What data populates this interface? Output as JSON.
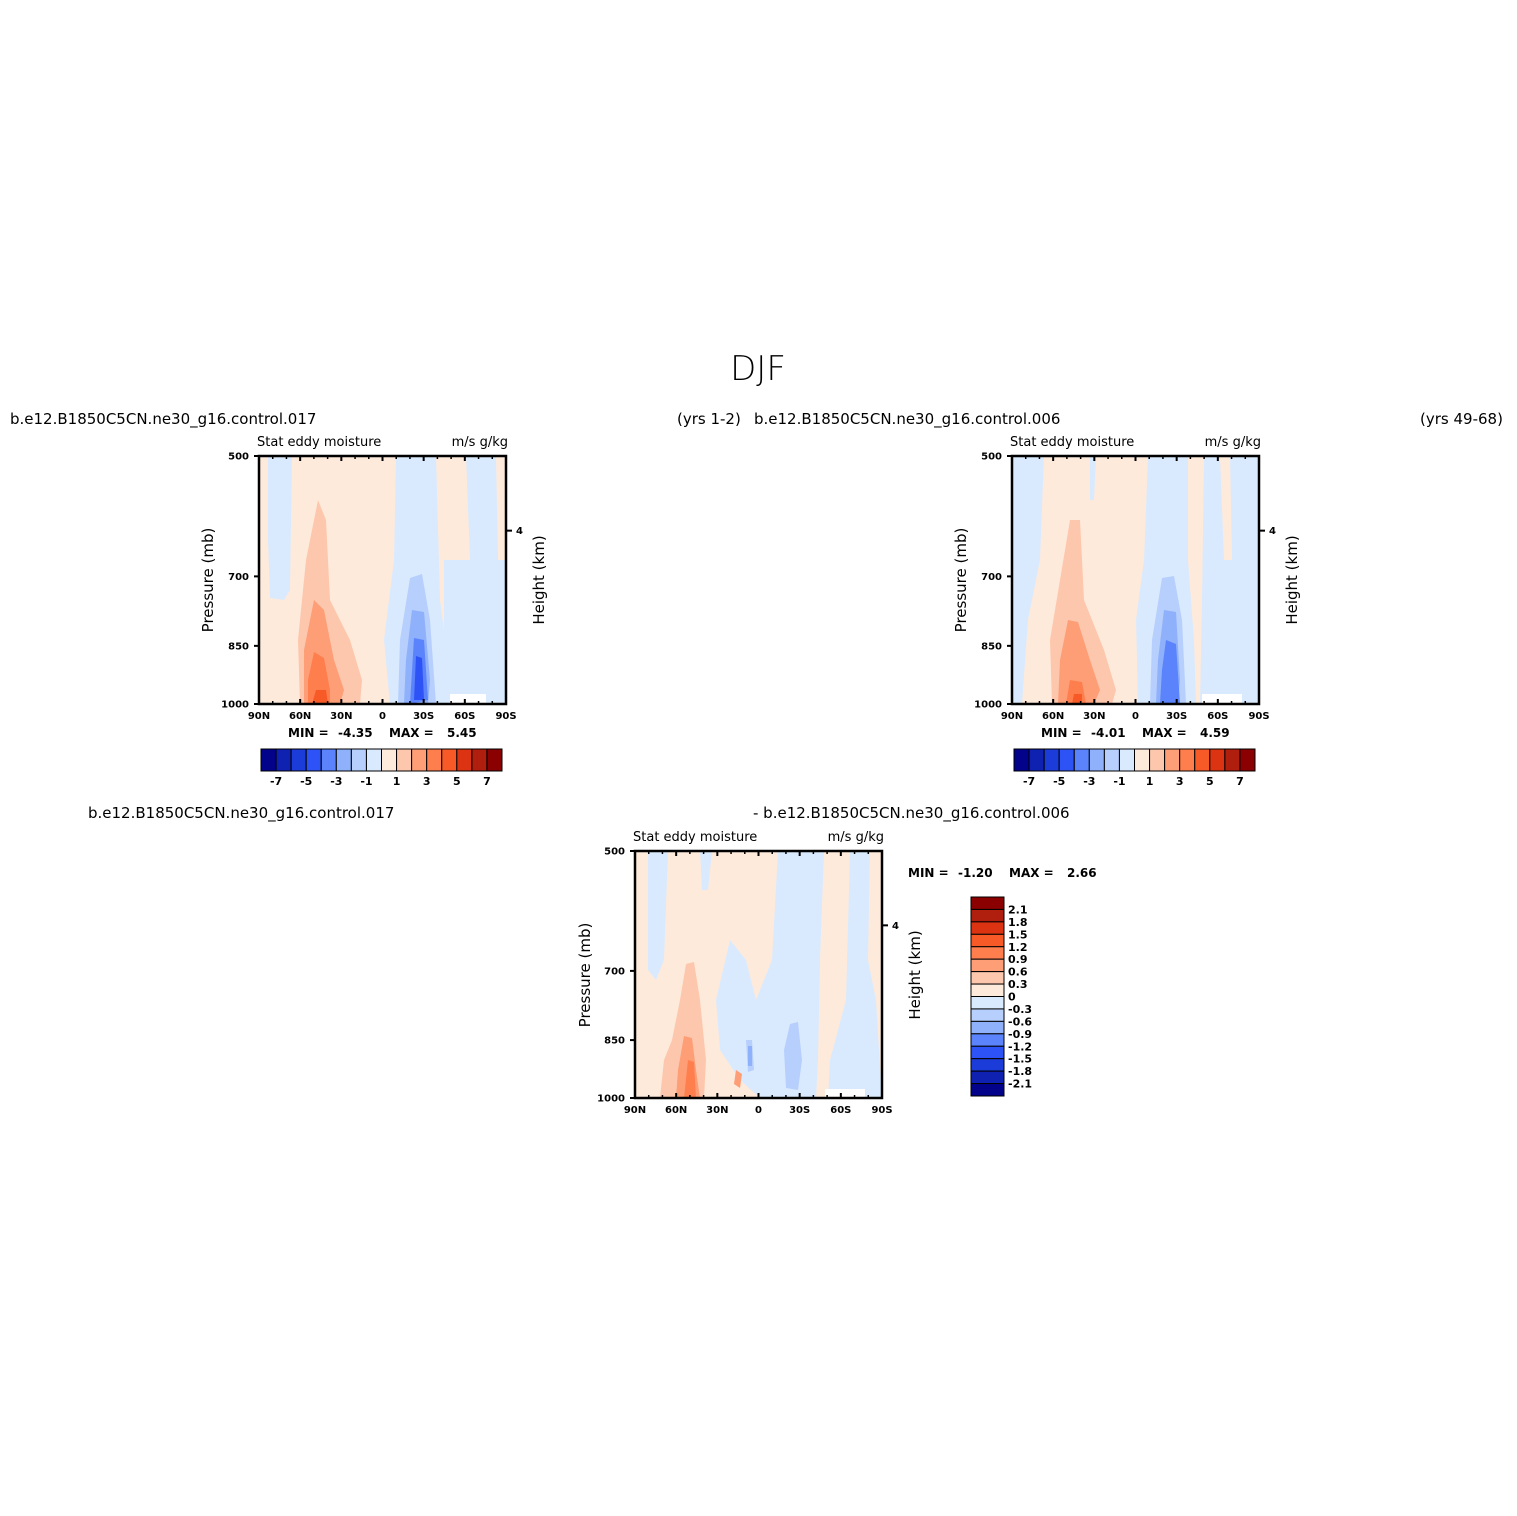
{
  "figure": {
    "title": "DJF",
    "top_left_case": "b.e12.B1850C5CN.ne30_g16.control.017",
    "top_middle_years": "(yrs 1-2)",
    "top_middle_case": "b.e12.B1850C5CN.ne30_g16.control.006",
    "top_right_years": "(yrs 49-68)",
    "diff_left_case": "b.e12.B1850C5CN.ne30_g16.control.017",
    "diff_right_case": "- b.e12.B1850C5CN.ne30_g16.control.006"
  },
  "colors": {
    "deep_red": "#8b0000",
    "dark_red": "#b01e0e",
    "red": "#dc3412",
    "orange_red": "#f75a26",
    "orange": "#ff7e4d",
    "salmon": "#fd9e77",
    "light_salmon": "#fdc7ad",
    "cream": "#feeadb",
    "pale_blue": "#d9eafe",
    "light_blue": "#b6cffd",
    "sky_blue": "#8fb0fb",
    "blue": "#5b83fb",
    "mid_blue": "#2d52f6",
    "royal_blue": "#1b3cd8",
    "dark_blue": "#0e21b0",
    "navy": "#02028b"
  },
  "chart_data": [
    {
      "type": "contour",
      "panel": "top-left",
      "title_left": "Stat eddy moisture",
      "title_right": "m/s g/kg",
      "xlabel": "",
      "ylabel": "Pressure (mb)",
      "ylabel_right": "Height (km)",
      "x_ticks": [
        "90N",
        "60N",
        "30N",
        "0",
        "30S",
        "60S",
        "90S"
      ],
      "y_ticks": [
        "500",
        "700",
        "850",
        "1000"
      ],
      "y_right_ticks": [
        "4"
      ],
      "ylim": [
        1000,
        500
      ],
      "min_label": "MIN =",
      "min_value": "-4.35",
      "max_label": "MAX =",
      "max_value": "5.45",
      "colorbar_levels": [
        -7,
        -6,
        -5,
        -4,
        -3,
        -2,
        -1,
        0,
        1,
        2,
        3,
        4,
        5,
        6,
        7
      ],
      "colorbar_labels": [
        "-7",
        "-5",
        "-3",
        "-1",
        "1",
        "3",
        "5",
        "7"
      ],
      "blobs": [
        {
          "lat": 48,
          "p": 900,
          "level": 1
        },
        {
          "lat": 45,
          "p": 850,
          "level": 2
        },
        {
          "lat": 46,
          "p": 940,
          "level": 3
        },
        {
          "lat": -28,
          "p": 900,
          "level": -1
        },
        {
          "lat": -27,
          "p": 930,
          "level": -2
        },
        {
          "lat": -27,
          "p": 950,
          "level": -3
        },
        {
          "lat": -27,
          "p": 960,
          "level": -4
        }
      ]
    },
    {
      "type": "contour",
      "panel": "top-right",
      "title_left": "Stat eddy moisture",
      "title_right": "m/s g/kg",
      "xlabel": "",
      "ylabel": "Pressure (mb)",
      "ylabel_right": "Height (km)",
      "x_ticks": [
        "90N",
        "60N",
        "30N",
        "0",
        "30S",
        "60S",
        "90S"
      ],
      "y_ticks": [
        "500",
        "700",
        "850",
        "1000"
      ],
      "y_right_ticks": [
        "4"
      ],
      "ylim": [
        1000,
        500
      ],
      "min_label": "MIN =",
      "min_value": "-4.01",
      "max_label": "MAX =",
      "max_value": "4.59",
      "colorbar_levels": [
        -7,
        -6,
        -5,
        -4,
        -3,
        -2,
        -1,
        0,
        1,
        2,
        3,
        4,
        5,
        6,
        7
      ],
      "colorbar_labels": [
        "-7",
        "-5",
        "-3",
        "-1",
        "1",
        "3",
        "5",
        "7"
      ],
      "blobs": [
        {
          "lat": 42,
          "p": 880,
          "level": 1
        },
        {
          "lat": 44,
          "p": 930,
          "level": 2
        },
        {
          "lat": 44,
          "p": 980,
          "level": 3
        },
        {
          "lat": -30,
          "p": 900,
          "level": -1
        },
        {
          "lat": -30,
          "p": 930,
          "level": -2
        },
        {
          "lat": -30,
          "p": 950,
          "level": -3
        }
      ]
    },
    {
      "type": "contour",
      "panel": "bottom-difference",
      "title_left": "Stat eddy moisture",
      "title_right": "m/s g/kg",
      "xlabel": "",
      "ylabel": "Pressure (mb)",
      "ylabel_right": "Height (km)",
      "x_ticks": [
        "90N",
        "60N",
        "30N",
        "0",
        "30S",
        "60S",
        "90S"
      ],
      "y_ticks": [
        "500",
        "700",
        "850",
        "1000"
      ],
      "y_right_ticks": [
        "4"
      ],
      "ylim": [
        1000,
        500
      ],
      "min_label": "MIN =",
      "min_value": "-1.20",
      "max_label": "MAX =",
      "max_value": "2.66",
      "colorbar_levels": [
        -2.1,
        -1.8,
        -1.5,
        -1.2,
        -0.9,
        -0.6,
        -0.3,
        0,
        0.3,
        0.6,
        0.9,
        1.2,
        1.5,
        1.8,
        2.1
      ],
      "colorbar_labels": [
        "2.1",
        "1.8",
        "1.5",
        "1.2",
        "0.9",
        "0.6",
        "0.3",
        "0",
        "-0.3",
        "-0.6",
        "-0.9",
        "-1.2",
        "-1.5",
        "-1.8",
        "-2.1"
      ],
      "blobs": [
        {
          "lat": 55,
          "p": 900,
          "level": 1
        },
        {
          "lat": 52,
          "p": 950,
          "level": 2
        },
        {
          "lat": 50,
          "p": 980,
          "level": 3
        },
        {
          "lat": 5,
          "p": 930,
          "level": -1
        },
        {
          "lat": -27,
          "p": 920,
          "level": -1
        }
      ]
    }
  ]
}
